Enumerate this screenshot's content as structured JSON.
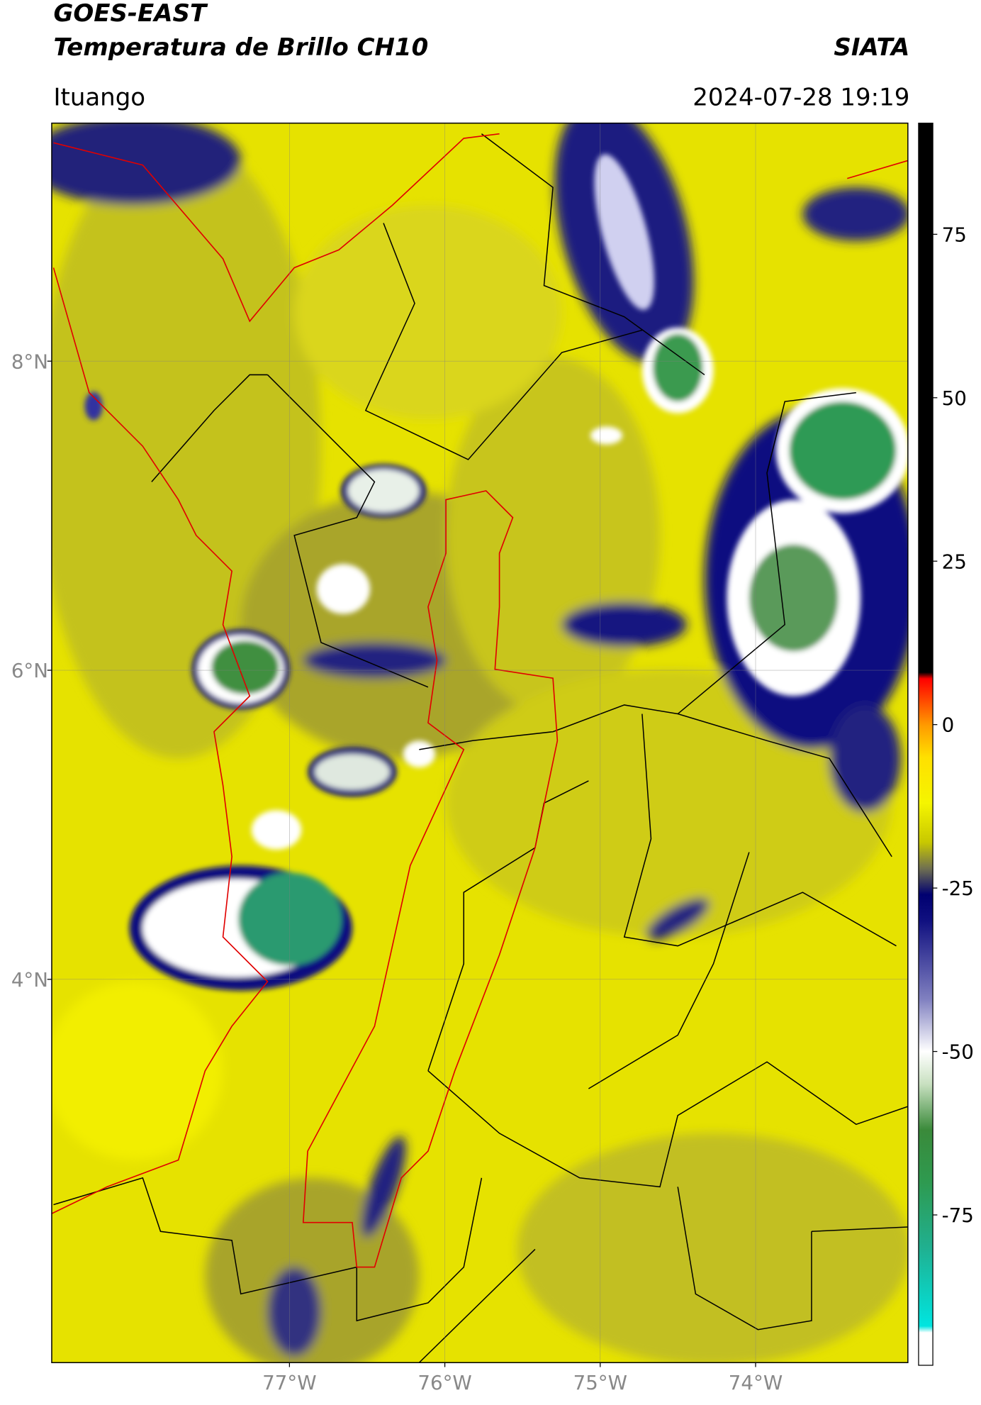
{
  "header": {
    "title": "GOES-EAST",
    "subtitle": "Temperatura de Brillo CH10",
    "source": "SIATA",
    "location": "Ituango",
    "datetime": "2024-07-28 19:19"
  },
  "map": {
    "latlim": [
      1.52,
      9.54
    ],
    "lonlim": [
      -78.53,
      -73.02
    ],
    "grid": true,
    "lat_ticks": [
      {
        "value": 8,
        "label": "8°N"
      },
      {
        "value": 6,
        "label": "6°N"
      },
      {
        "value": 4,
        "label": "4°N"
      }
    ],
    "lon_ticks": [
      {
        "value": -77,
        "label": "77°W"
      },
      {
        "value": -76,
        "label": "76°W"
      },
      {
        "value": -75,
        "label": "75°W"
      },
      {
        "value": -74,
        "label": "74°W"
      }
    ]
  },
  "colorbar": {
    "range": [
      -98,
      92
    ],
    "ticks": [
      75,
      50,
      25,
      0,
      -25,
      -50,
      -75
    ],
    "colormap": [
      {
        "value": -98,
        "color": "#ffffff"
      },
      {
        "value": -93,
        "color": "#ffffff"
      },
      {
        "value": -92,
        "color": "#00e5e0"
      },
      {
        "value": -80,
        "color": "#20b090"
      },
      {
        "value": -70,
        "color": "#2e9a50"
      },
      {
        "value": -62,
        "color": "#3a8a3a"
      },
      {
        "value": -55,
        "color": "#c8e0c0"
      },
      {
        "value": -50,
        "color": "#ffffff"
      },
      {
        "value": -42,
        "color": "#8080c0"
      },
      {
        "value": -30,
        "color": "#101080"
      },
      {
        "value": -26,
        "color": "#000070"
      },
      {
        "value": -22,
        "color": "#707050"
      },
      {
        "value": -18,
        "color": "#c8c800"
      },
      {
        "value": -12,
        "color": "#f5f500"
      },
      {
        "value": -5,
        "color": "#ffe000"
      },
      {
        "value": 0,
        "color": "#ff9900"
      },
      {
        "value": 7,
        "color": "#ff0000"
      },
      {
        "value": 8,
        "color": "#000000"
      },
      {
        "value": 92,
        "color": "#000000"
      }
    ]
  }
}
